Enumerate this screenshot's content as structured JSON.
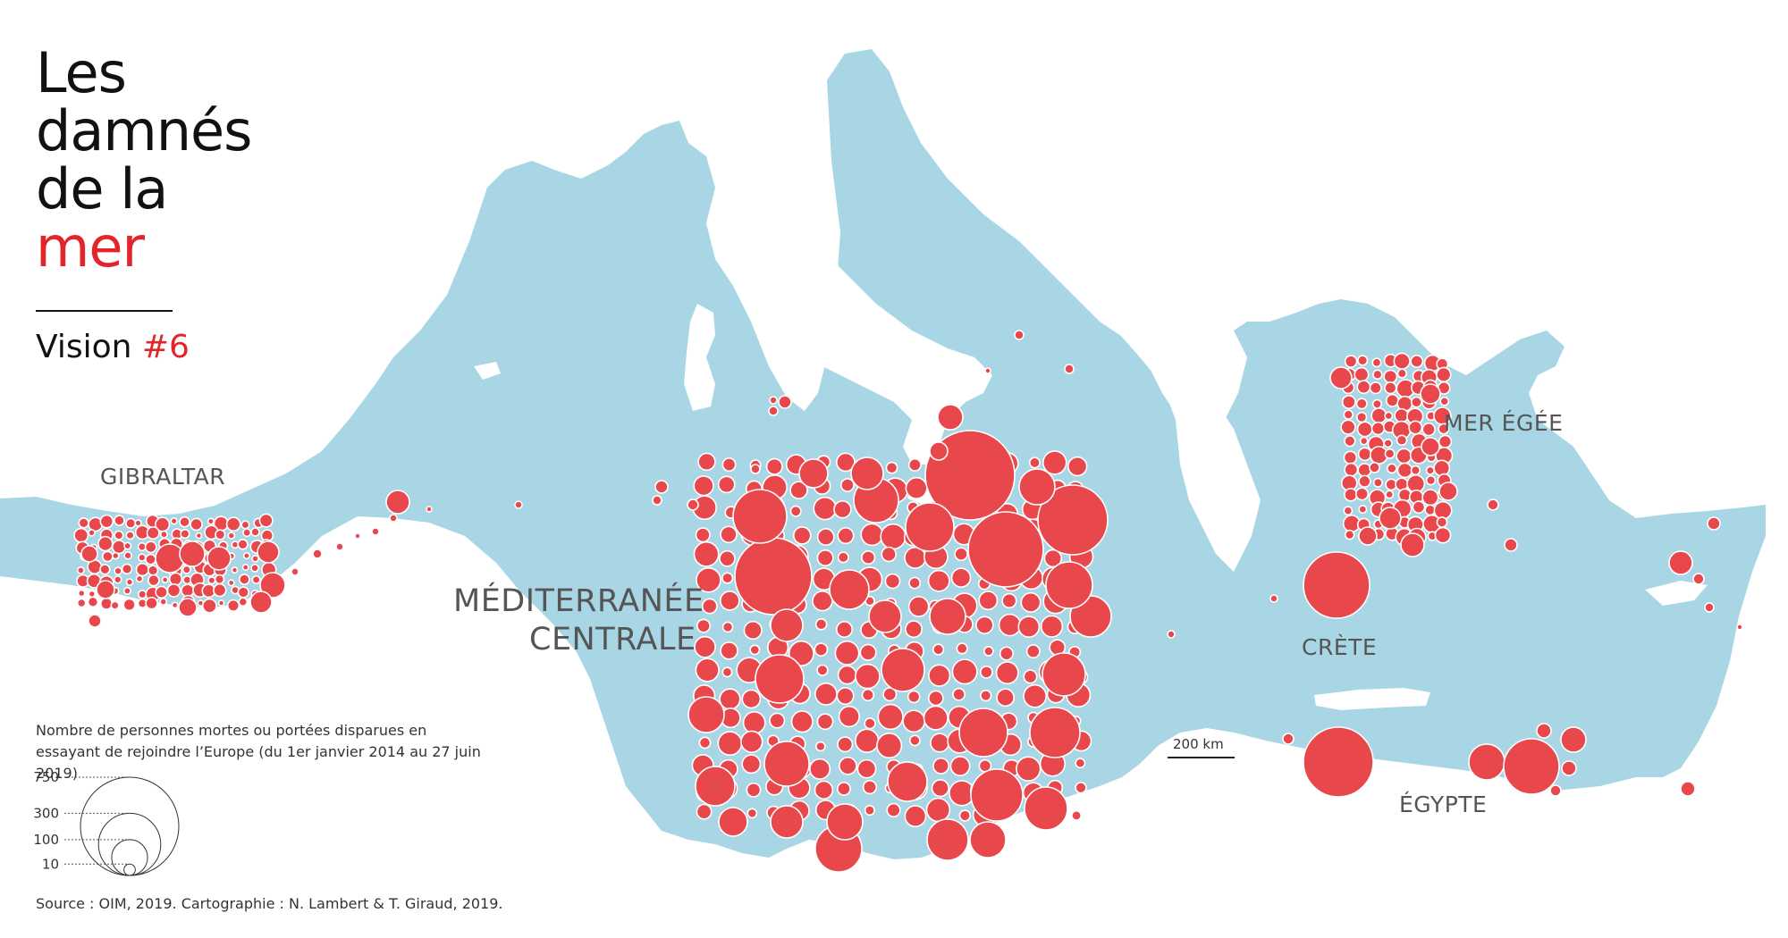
{
  "title": {
    "line1": "Les",
    "line2": "damnés",
    "line3": "de la",
    "line4": "mer"
  },
  "subtitle": {
    "prefix": "Vision ",
    "number": "#6"
  },
  "regions": {
    "gibraltar": "GIBRALTAR",
    "central_line1": "MÉDITERRANÉE",
    "central_line2": "CENTRALE",
    "aegean": "MER ÉGÉE",
    "crete": "CRÈTE",
    "egypt": "ÉGYPTE"
  },
  "legend": {
    "title": "Nombre de personnes mortes ou portées disparues en essayant de rejoindre l’Europe (du 1er janvier 2014 au 27 juin 2019)",
    "values": [
      {
        "label": "750",
        "value": 750
      },
      {
        "label": "300",
        "value": 300
      },
      {
        "label": "100",
        "value": 100
      },
      {
        "label": "10",
        "value": 10
      }
    ]
  },
  "scale_bar": "200 km",
  "source": "Source : OIM, 2019. Cartographie : N. Lambert & T. Giraud, 2019.",
  "colors": {
    "sea": "#a9d6e5",
    "land": "#ffffff",
    "circle": "#e8474c",
    "accent": "#e2252b"
  }
}
